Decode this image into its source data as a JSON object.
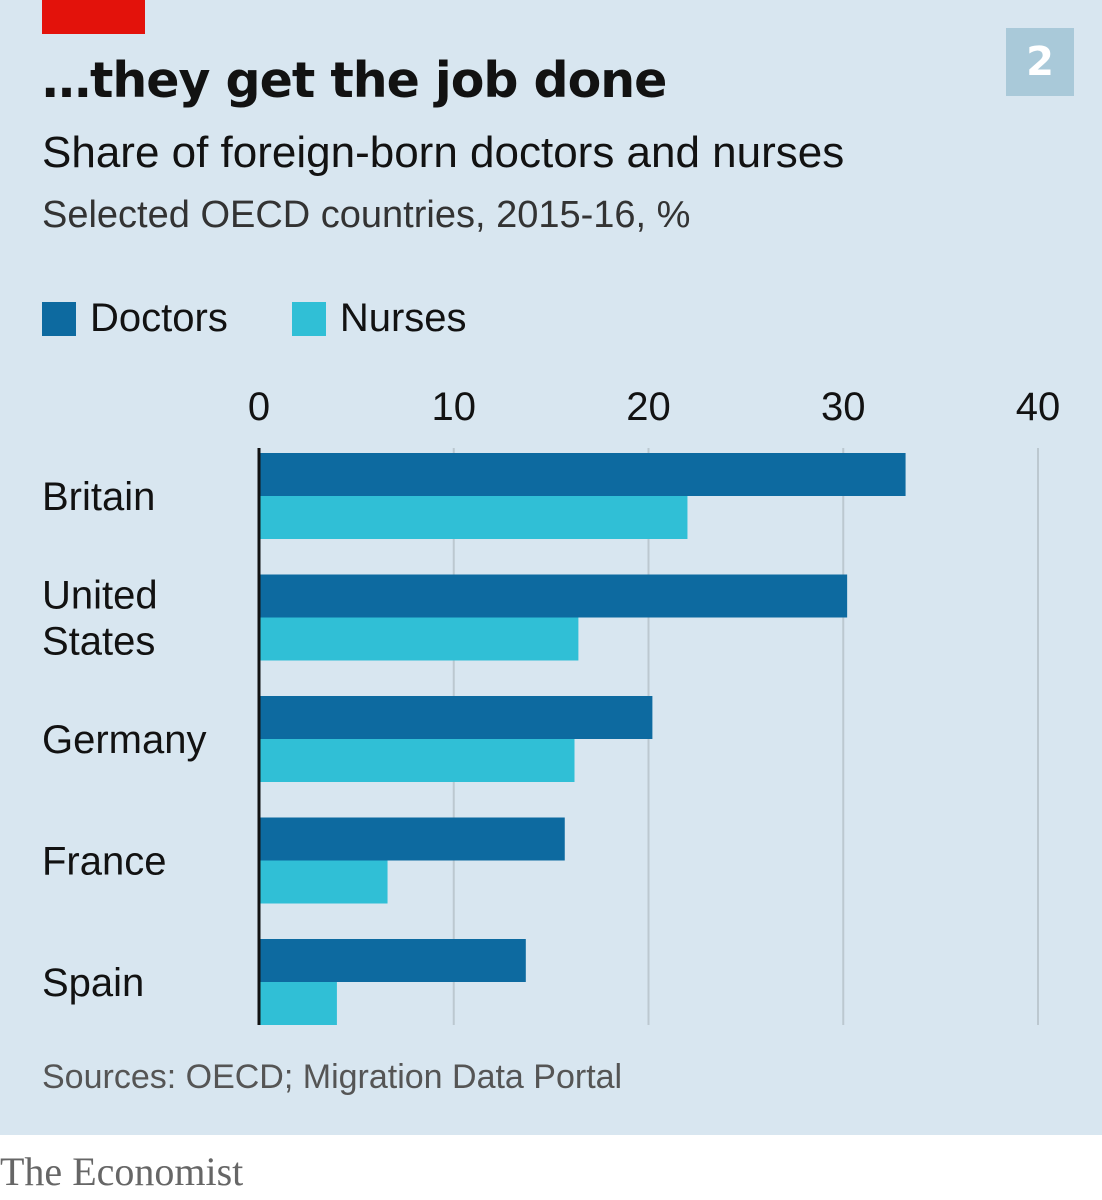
{
  "header": {
    "chart_number": "2",
    "title": "…they get the job done",
    "subtitle": "Share of foreign-born doctors and nurses",
    "subsubtitle": "Selected OECD countries, 2015-16, %"
  },
  "footer": {
    "source": "Sources: OECD; Migration Data Portal",
    "brand": "The Economist"
  },
  "colors": {
    "doctors": "#0d6aa0",
    "nurses": "#30bfd6",
    "gridline": "#bcc8d0",
    "axis": "#121212"
  },
  "chart_data": {
    "type": "bar",
    "orientation": "horizontal",
    "title": "…they get the job done",
    "subtitle": "Share of foreign-born doctors and nurses",
    "xlim": [
      0,
      40
    ],
    "xticks": [
      0,
      10,
      20,
      30,
      40
    ],
    "grid": true,
    "legend": "top-left",
    "categories": [
      [
        "Britain"
      ],
      [
        "United",
        "States"
      ],
      [
        "Germany"
      ],
      [
        "France"
      ],
      [
        "Spain"
      ]
    ],
    "series": [
      {
        "name": "Doctors",
        "values": [
          33.2,
          30.2,
          20.2,
          15.7,
          13.7
        ]
      },
      {
        "name": "Nurses",
        "values": [
          22.0,
          16.4,
          16.2,
          6.6,
          4.0
        ]
      }
    ]
  }
}
